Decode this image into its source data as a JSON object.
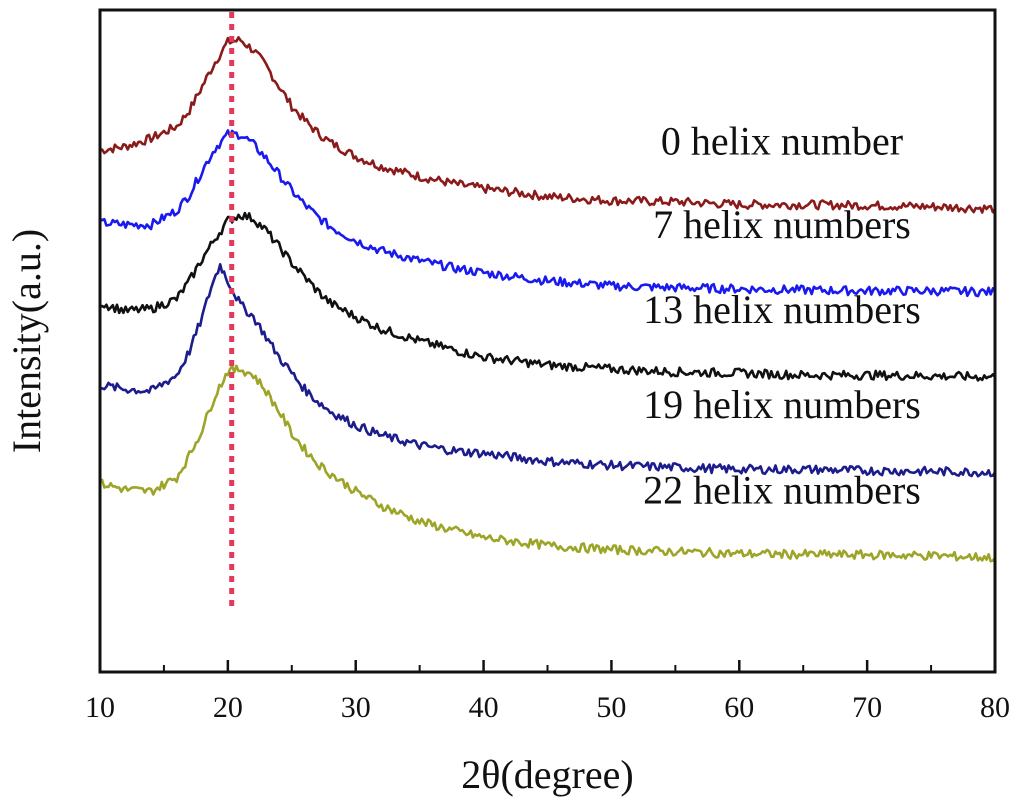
{
  "chart_data": {
    "type": "line",
    "title": "",
    "xlabel": "2θ(degree)",
    "ylabel": "Intensity(a.u.)",
    "xlim": [
      10,
      80
    ],
    "xticks": [
      10,
      20,
      30,
      40,
      50,
      60,
      70,
      80
    ],
    "y_ticks_shown": false,
    "grid": false,
    "legend": "none — each curve is labeled on the right",
    "reference_line": {
      "x": 20.3,
      "style": "dotted",
      "color": "#e23a5a"
    },
    "series": [
      {
        "name": "0 helix number",
        "color": "#8b1a1a",
        "x": [
          10,
          12,
          14,
          16,
          17,
          18,
          19,
          20,
          21,
          22,
          23,
          24,
          25,
          26,
          27,
          28,
          30,
          32,
          35,
          38,
          40,
          45,
          50,
          55,
          60,
          65,
          70,
          75,
          80
        ],
        "y": [
          5.0,
          5.1,
          5.3,
          5.6,
          6.0,
          6.6,
          7.2,
          7.7,
          7.75,
          7.5,
          7.1,
          6.6,
          6.1,
          5.75,
          5.45,
          5.2,
          4.85,
          4.6,
          4.35,
          4.15,
          4.05,
          3.85,
          3.75,
          3.72,
          3.65,
          3.65,
          3.63,
          3.6,
          3.55
        ]
      },
      {
        "name": "7 helix numbers",
        "color": "#1a1aee",
        "x": [
          10,
          12,
          14,
          16,
          17,
          18,
          19,
          20,
          21,
          22,
          23,
          24,
          25,
          26,
          27,
          28,
          30,
          32,
          35,
          38,
          40,
          45,
          50,
          55,
          60,
          65,
          70,
          75,
          80
        ],
        "y": [
          3.2,
          3.15,
          3.15,
          3.5,
          3.9,
          4.5,
          5.05,
          5.4,
          5.4,
          5.15,
          4.8,
          4.4,
          4.0,
          3.65,
          3.35,
          3.1,
          2.75,
          2.5,
          2.25,
          2.05,
          1.95,
          1.75,
          1.62,
          1.58,
          1.55,
          1.52,
          1.5,
          1.5,
          1.47
        ]
      },
      {
        "name": "13 helix numbers",
        "color": "#111111",
        "x": [
          10,
          12,
          14,
          16,
          17,
          18,
          19,
          20,
          21,
          22,
          23,
          24,
          25,
          26,
          27,
          28,
          30,
          32,
          35,
          38,
          40,
          45,
          50,
          55,
          60,
          65,
          70,
          75,
          80
        ],
        "y": [
          1.2,
          1.0,
          1.05,
          1.3,
          1.75,
          2.3,
          2.8,
          3.25,
          3.4,
          3.3,
          3.0,
          2.6,
          2.2,
          1.85,
          1.5,
          1.2,
          0.85,
          0.55,
          0.25,
          0.0,
          -0.15,
          -0.35,
          -0.45,
          -0.52,
          -0.55,
          -0.6,
          -0.6,
          -0.62,
          -0.65
        ]
      },
      {
        "name": "19 helix numbers",
        "color": "#1c1c8c",
        "x": [
          10,
          12,
          14,
          16,
          17,
          18,
          18.7,
          19.4,
          20,
          21,
          22,
          23,
          24,
          25,
          26,
          27,
          28,
          30,
          32,
          35,
          38,
          40,
          45,
          50,
          55,
          60,
          65,
          70,
          75,
          80
        ],
        "y": [
          -0.85,
          -0.95,
          -1.0,
          -0.6,
          0.0,
          0.85,
          1.6,
          2.15,
          1.75,
          1.15,
          0.85,
          0.35,
          -0.15,
          -0.55,
          -0.95,
          -1.25,
          -1.5,
          -1.85,
          -2.1,
          -2.35,
          -2.5,
          -2.55,
          -2.75,
          -2.85,
          -2.9,
          -2.95,
          -2.95,
          -2.98,
          -3.0,
          -3.02
        ]
      },
      {
        "name": "22 helix numbers",
        "color": "#9da528",
        "x": [
          10,
          12,
          14,
          16,
          17,
          18,
          19,
          20,
          21,
          22,
          23,
          24,
          25,
          26,
          27,
          28,
          30,
          32,
          35,
          38,
          40,
          45,
          50,
          55,
          60,
          65,
          70,
          75,
          80
        ],
        "y": [
          -3.3,
          -3.45,
          -3.5,
          -3.15,
          -2.6,
          -1.95,
          -1.1,
          -0.5,
          -0.45,
          -0.6,
          -1.0,
          -1.5,
          -2.05,
          -2.45,
          -2.8,
          -3.05,
          -3.5,
          -3.85,
          -4.25,
          -4.5,
          -4.65,
          -4.85,
          -4.95,
          -5.0,
          -5.05,
          -5.07,
          -5.08,
          -5.1,
          -5.15
        ]
      }
    ]
  }
}
